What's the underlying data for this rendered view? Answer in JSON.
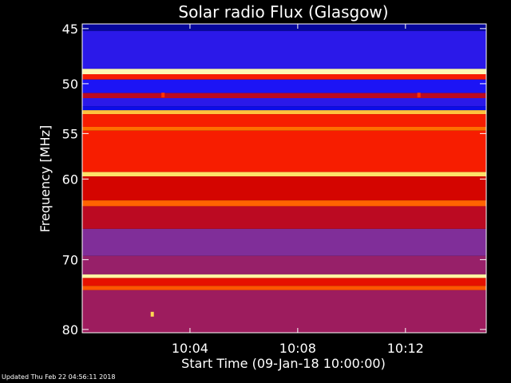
{
  "chart_data": {
    "type": "heatmap",
    "title": "Solar radio Flux (Glasgow)",
    "xlabel": "Start Time (09-Jan-18 10:00:00)",
    "ylabel": "Frequency [MHz]",
    "x_unit": "minutes after 10:00:00",
    "xlim": [
      0,
      15
    ],
    "x_ticks": [
      {
        "value": 4,
        "label": "10:04"
      },
      {
        "value": 8,
        "label": "10:08"
      },
      {
        "value": 12,
        "label": "10:12"
      }
    ],
    "y_scale": "log",
    "ylim": [
      44.6,
      80.5
    ],
    "y_ticks": [
      {
        "value": 45,
        "label": "45"
      },
      {
        "value": 50,
        "label": "50"
      },
      {
        "value": 55,
        "label": "55"
      },
      {
        "value": 60,
        "label": "60"
      },
      {
        "value": 70,
        "label": "70"
      },
      {
        "value": 80,
        "label": "80"
      }
    ],
    "colormap": [
      "#000066",
      "#1010ff",
      "#7733aa",
      "#cc0000",
      "#ff2200",
      "#ff7700",
      "#ffdd55",
      "#ffffcc"
    ],
    "bands": [
      {
        "f0": 44.6,
        "f1": 45.2,
        "level": 0.05
      },
      {
        "f0": 45.2,
        "f1": 48.6,
        "level": 0.18
      },
      {
        "f0": 48.6,
        "f1": 49.1,
        "level": 0.97
      },
      {
        "f0": 49.1,
        "f1": 49.6,
        "level": 0.55
      },
      {
        "f0": 49.6,
        "f1": 50.9,
        "level": 0.16
      },
      {
        "f0": 50.9,
        "f1": 51.4,
        "level": 0.4
      },
      {
        "f0": 51.4,
        "f1": 52.2,
        "level": 0.18
      },
      {
        "f0": 52.2,
        "f1": 52.6,
        "level": 0.12
      },
      {
        "f0": 52.6,
        "f1": 53.0,
        "level": 0.82
      },
      {
        "f0": 53.0,
        "f1": 54.3,
        "level": 0.55
      },
      {
        "f0": 54.3,
        "f1": 54.7,
        "level": 0.7
      },
      {
        "f0": 54.7,
        "f1": 59.2,
        "level": 0.55
      },
      {
        "f0": 59.2,
        "f1": 59.7,
        "level": 0.88
      },
      {
        "f0": 59.7,
        "f1": 62.5,
        "level": 0.45
      },
      {
        "f0": 62.5,
        "f1": 63.2,
        "level": 0.68
      },
      {
        "f0": 63.2,
        "f1": 66.0,
        "level": 0.4
      },
      {
        "f0": 66.0,
        "f1": 69.5,
        "level": 0.3
      },
      {
        "f0": 69.5,
        "f1": 72.0,
        "level": 0.34
      },
      {
        "f0": 72.0,
        "f1": 72.5,
        "level": 0.95
      },
      {
        "f0": 72.5,
        "f1": 73.6,
        "level": 0.5
      },
      {
        "f0": 73.6,
        "f1": 74.2,
        "level": 0.66
      },
      {
        "f0": 74.2,
        "f1": 80.5,
        "level": 0.35
      }
    ],
    "features": [
      {
        "t": 3.0,
        "f": 51.1,
        "level": 0.6
      },
      {
        "t": 12.5,
        "f": 51.1,
        "level": 0.6
      },
      {
        "t": 2.6,
        "f": 77.7,
        "level": 0.85
      }
    ],
    "grid": false,
    "legend": "none"
  },
  "footer": {
    "updated": "Updated Thu Feb 22 04:56:11 2018"
  }
}
